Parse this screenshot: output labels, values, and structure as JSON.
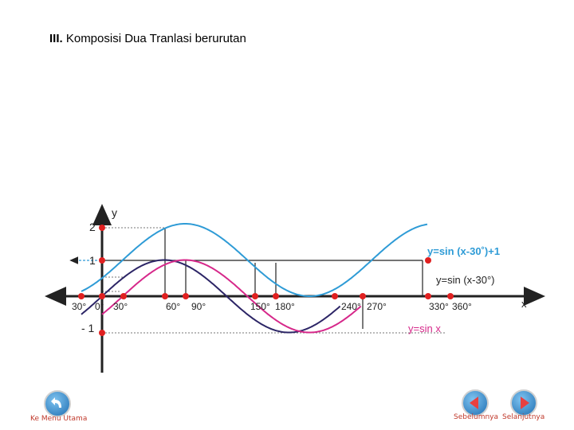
{
  "title": {
    "roman": "III.",
    "text": "Komposisi Dua Tranlasi berurutan"
  },
  "graph": {
    "axes": {
      "x_label": "x",
      "y_label": "y"
    },
    "y_ticks": [
      "2",
      "1",
      "- 1"
    ],
    "x_ticks": [
      "30°",
      "0°",
      "30°",
      "60°",
      "90°",
      "150°",
      "180°",
      "240°",
      "270°",
      "330°",
      "360°"
    ],
    "curve_labels": {
      "shifted_up": "y=sin (x-30˚)+1",
      "shifted": "y=sin (x-30°)",
      "base": "y=sin x"
    },
    "colors": {
      "shifted_up": "#2e9bd6",
      "shifted": "#d6288a",
      "base": "#2c2566",
      "points": "#e02020",
      "axis": "#222222"
    }
  },
  "nav": {
    "home_label": "Ke Menu Utama",
    "prev_label": "Sebelumnya",
    "next_label": "Selanjutnya"
  }
}
